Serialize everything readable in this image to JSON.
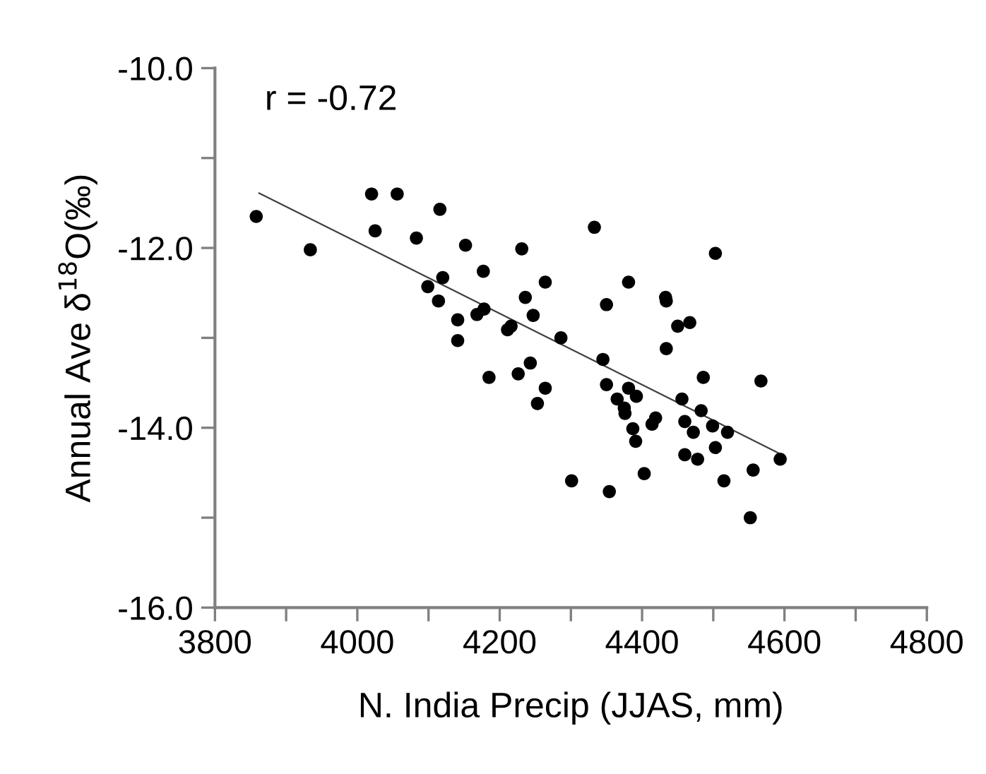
{
  "chart_data": {
    "type": "scatter",
    "xlabel": "N. India Precip (JJAS, mm)",
    "ylabel": "Annual Ave δ$^{18}$O(‰)",
    "annotations": [
      "r = -0.72"
    ],
    "xlim": [
      3800,
      4800
    ],
    "ylim": [
      -16,
      -10
    ],
    "xticks": [
      3800,
      {
        "value": 3900,
        "label": null
      },
      4000,
      {
        "value": 4100,
        "label": null
      },
      4200,
      {
        "value": 4300,
        "label": null
      },
      4400,
      {
        "value": 4500,
        "label": null
      },
      4600,
      {
        "value": 4700,
        "label": null
      },
      4800
    ],
    "yticks": [
      {
        "value": -16,
        "label": "-16.0"
      },
      {
        "value": -15,
        "label": null
      },
      {
        "value": -14,
        "label": "-14.0"
      },
      {
        "value": -13,
        "label": null
      },
      {
        "value": -12,
        "label": "-12.0"
      },
      {
        "value": -11,
        "label": null
      },
      {
        "value": -10,
        "label": "-10.0"
      }
    ],
    "grid": false,
    "legend": false,
    "series": [
      {
        "color": "#000000",
        "marker": "circle",
        "x": [
          3858,
          3934,
          4020,
          4056,
          4025,
          4116,
          4083,
          4152,
          4231,
          4177,
          4264,
          4120,
          4099,
          4114,
          4236,
          4247,
          4141,
          4168,
          4178,
          4211,
          4216,
          4141,
          4286,
          4185,
          4226,
          4243,
          4264,
          4253,
          4301,
          4333,
          4503,
          4381,
          4350,
          4433,
          4434,
          4450,
          4467,
          4434,
          4345,
          4486,
          4567,
          4350,
          4381,
          4392,
          4365,
          4456,
          4375,
          4376,
          4483,
          4419,
          4414,
          4460,
          4499,
          4387,
          4472,
          4520,
          4391,
          4503,
          4460,
          4478,
          4594,
          4556,
          4403,
          4515,
          4354,
          4552
        ],
        "values": [
          -11.65,
          -12.02,
          -11.4,
          -11.4,
          -11.81,
          -11.57,
          -11.89,
          -11.97,
          -12.01,
          -12.26,
          -12.38,
          -12.33,
          -12.43,
          -12.59,
          -12.55,
          -12.75,
          -12.8,
          -12.74,
          -12.68,
          -12.91,
          -12.87,
          -13.03,
          -13.0,
          -13.44,
          -13.4,
          -13.28,
          -13.56,
          -13.73,
          -14.59,
          -11.77,
          -12.06,
          -12.38,
          -12.63,
          -12.55,
          -12.59,
          -12.87,
          -12.83,
          -13.12,
          -13.24,
          -13.44,
          -13.48,
          -13.52,
          -13.56,
          -13.65,
          -13.68,
          -13.68,
          -13.78,
          -13.84,
          -13.81,
          -13.89,
          -13.96,
          -13.93,
          -13.98,
          -14.01,
          -14.05,
          -14.05,
          -14.15,
          -14.22,
          -14.3,
          -14.35,
          -14.35,
          -14.47,
          -14.51,
          -14.59,
          -14.71,
          -15.0
        ]
      },
      {
        "type": "line",
        "color": "#404040",
        "marker": "none",
        "line_style": "solid",
        "x": [
          3862,
          4594
        ],
        "values": [
          -11.39,
          -14.29
        ]
      }
    ]
  }
}
